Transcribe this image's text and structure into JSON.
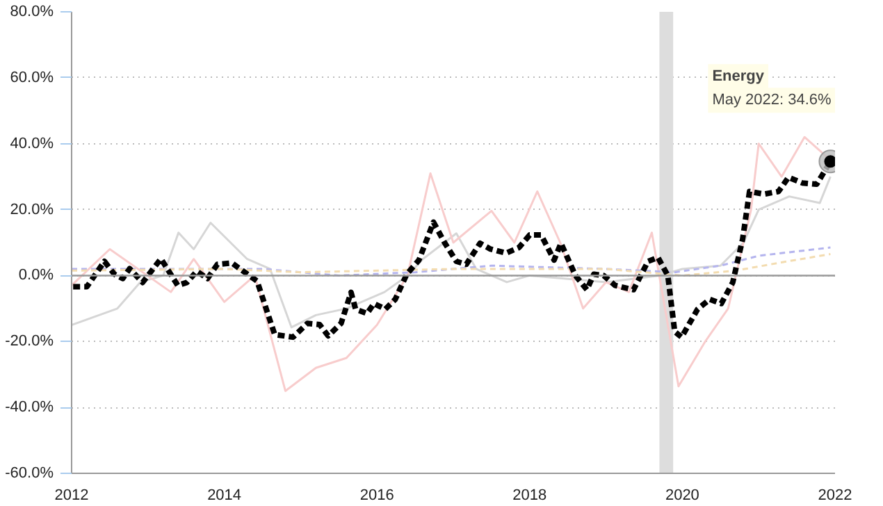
{
  "chart_data": {
    "type": "line",
    "xlim": [
      2012,
      2022
    ],
    "ylim": [
      -60,
      80
    ],
    "xticks": [
      2012,
      2014,
      2016,
      2018,
      2020,
      2022
    ],
    "yticks": [
      {
        "value": -60,
        "label": "-60.0%"
      },
      {
        "value": -40,
        "label": "-40.0%"
      },
      {
        "value": -20,
        "label": "-20.0%"
      },
      {
        "value": 0,
        "label": "0.0%"
      },
      {
        "value": 20,
        "label": "20.0%"
      },
      {
        "value": 40,
        "label": "40.0%"
      },
      {
        "value": 60,
        "label": "60.0%"
      },
      {
        "value": 80,
        "label": "80.0%"
      }
    ],
    "grid": "y",
    "ref_lines": [
      {
        "axis": "y",
        "value": 0,
        "color": "#999999",
        "line_style": "solid"
      }
    ],
    "bands": [
      {
        "axis": "x",
        "from": 2019.7,
        "to": 2019.88,
        "color": "#dddddd"
      }
    ],
    "series": [
      {
        "color": "#d6d6d6",
        "line_style": "solid",
        "x": [
          2012.0,
          2012.6,
          2012.9,
          2013.2,
          2013.4,
          2013.6,
          2013.82,
          2014.3,
          2014.6,
          2014.88,
          2015.2,
          2015.6,
          2016.1,
          2016.4,
          2016.6,
          2017.04,
          2017.3,
          2017.7,
          2018.0,
          2019.0,
          2019.7,
          2020.0,
          2020.5,
          2020.8,
          2021.0,
          2021.4,
          2021.8,
          2021.94
        ],
        "values": [
          -15,
          -10,
          -2,
          0,
          13,
          8,
          16,
          5,
          2,
          -15.7,
          -12,
          -10,
          -5,
          0,
          5,
          12.8,
          2,
          -2,
          0,
          -2,
          0,
          2,
          3,
          10,
          20,
          24,
          22,
          30
        ]
      },
      {
        "color": "#f8cccc",
        "line_style": "solid",
        "x": [
          2012.0,
          2012.5,
          2013.3,
          2013.6,
          2014.0,
          2014.4,
          2014.8,
          2015.2,
          2015.6,
          2016.0,
          2016.4,
          2016.7,
          2017.0,
          2017.5,
          2017.8,
          2018.1,
          2018.4,
          2018.7,
          2019.0,
          2019.3,
          2019.6,
          2019.95,
          2020.3,
          2020.6,
          2020.9,
          2021.0,
          2021.3,
          2021.6,
          2021.94
        ],
        "values": [
          -3,
          8,
          -5,
          5,
          -8,
          0,
          -35,
          -28,
          -25,
          -15,
          0,
          31,
          10,
          19.6,
          10,
          25.5,
          10,
          -10,
          -2,
          -5,
          13,
          -33.6,
          -20,
          -10,
          20,
          40,
          30,
          42,
          35
        ]
      },
      {
        "color": "#b4b4ee",
        "line_style": "dashed",
        "x": [
          2012.0,
          2014.5,
          2015.5,
          2016.5,
          2017.5,
          2019.0,
          2019.9,
          2020.5,
          2021.0,
          2021.94
        ],
        "values": [
          2,
          2,
          0,
          1,
          3,
          2,
          1,
          3,
          6,
          8.5
        ]
      },
      {
        "color": "#f3dcb0",
        "line_style": "dashed",
        "x": [
          2012.0,
          2014.0,
          2015.0,
          2017.0,
          2019.0,
          2020.0,
          2020.7,
          2021.3,
          2021.94
        ],
        "values": [
          1.5,
          2,
          1,
          2,
          2,
          0,
          1.5,
          4,
          6.5
        ]
      },
      {
        "name": "Energy",
        "color": "#000000",
        "line_style": "dashed",
        "x": [
          2012.02,
          2012.2,
          2012.43,
          2012.56,
          2012.67,
          2012.76,
          2012.93,
          2013.17,
          2013.39,
          2013.51,
          2013.64,
          2013.78,
          2013.91,
          2014.1,
          2014.25,
          2014.43,
          2014.66,
          2014.9,
          2015.09,
          2015.25,
          2015.36,
          2015.53,
          2015.66,
          2015.72,
          2015.87,
          2015.96,
          2016.11,
          2016.24,
          2016.39,
          2016.55,
          2016.74,
          2016.89,
          2017.04,
          2017.17,
          2017.35,
          2017.48,
          2017.69,
          2017.86,
          2018.0,
          2018.15,
          2018.32,
          2018.41,
          2018.6,
          2018.75,
          2018.84,
          2018.97,
          2019.12,
          2019.36,
          2019.55,
          2019.68,
          2019.81,
          2019.9,
          2019.99,
          2020.2,
          2020.36,
          2020.51,
          2020.66,
          2020.79,
          2020.88,
          2021.07,
          2021.26,
          2021.39,
          2021.57,
          2021.76,
          2021.94
        ],
        "values": [
          -3.4,
          -3.4,
          4.3,
          0.4,
          -0.9,
          2.1,
          -2.1,
          5.1,
          -3.0,
          -2.1,
          1.3,
          -0.9,
          3.4,
          3.8,
          1.3,
          -1.7,
          -17.9,
          -18.7,
          -14.5,
          -14.9,
          -18.3,
          -14.5,
          -5.1,
          -10.2,
          -11.5,
          -8.5,
          -10.2,
          -7.2,
          0.4,
          4.7,
          16.2,
          9.8,
          4.3,
          3.4,
          9.8,
          8.1,
          6.8,
          8.5,
          12.3,
          12.3,
          4.7,
          9.8,
          0,
          -4.3,
          0.4,
          0,
          -3.0,
          -4.3,
          4.3,
          5.5,
          0,
          -17.0,
          -18.7,
          -10.2,
          -7.2,
          -8.5,
          -2.1,
          11.1,
          25.5,
          24.7,
          25.5,
          29.8,
          28.1,
          27.7,
          34.6
        ]
      }
    ],
    "annotations": [
      "May 2022: 34.6%"
    ]
  }
}
